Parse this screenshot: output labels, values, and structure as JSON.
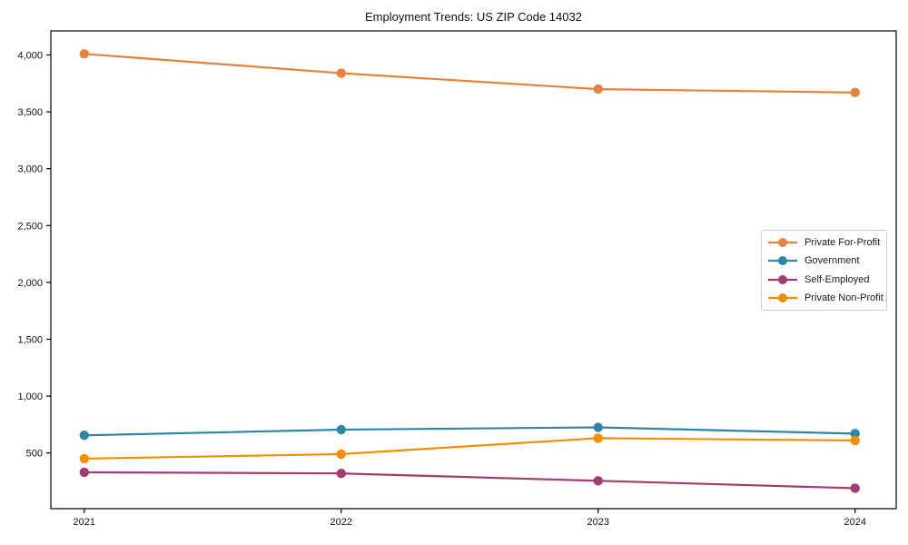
{
  "figure": {
    "background": "#ffffff",
    "axis_color": "#000000"
  },
  "chart_data": {
    "type": "line",
    "title": "Employment Trends: US ZIP Code 14032",
    "xlabel": "",
    "ylabel": "",
    "x": [
      2021,
      2022,
      2023,
      2024
    ],
    "x_tick_labels": [
      "2021",
      "2022",
      "2023",
      "2024"
    ],
    "series": [
      {
        "name": "Private For-Profit",
        "color": "#E8813D",
        "values": [
          4010,
          3840,
          3700,
          3670
        ]
      },
      {
        "name": "Government",
        "color": "#2E86AB",
        "values": [
          655,
          705,
          725,
          670
        ]
      },
      {
        "name": "Self-Employed",
        "color": "#A23B72",
        "values": [
          330,
          320,
          255,
          190
        ]
      },
      {
        "name": "Private Non-Profit",
        "color": "#F18F01",
        "values": [
          450,
          490,
          630,
          610
        ]
      }
    ],
    "y_ticks": [
      500,
      1000,
      1500,
      2000,
      2500,
      3000,
      3500,
      4000
    ],
    "y_tick_labels": [
      "500",
      "1,000",
      "1,500",
      "2,000",
      "2,500",
      "3,000",
      "3,500",
      "4,000"
    ],
    "xlim": [
      2020.87,
      2024.16
    ],
    "ylim": [
      10,
      4212
    ],
    "grid": false,
    "legend_position": "center-right",
    "legend_items": [
      "Private For-Profit",
      "Government",
      "Self-Employed",
      "Private Non-Profit"
    ]
  }
}
